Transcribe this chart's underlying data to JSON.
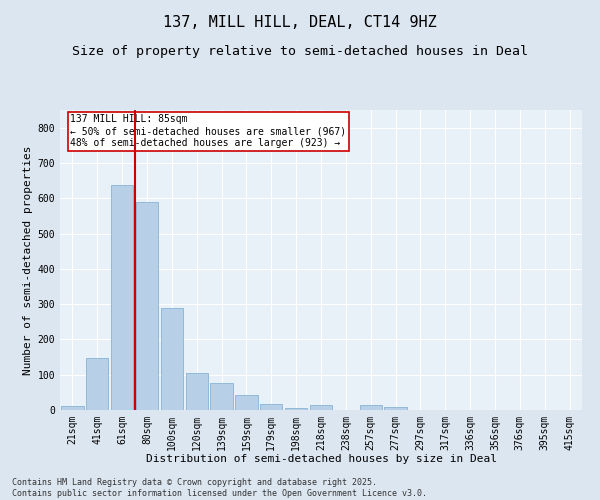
{
  "title": "137, MILL HILL, DEAL, CT14 9HZ",
  "subtitle": "Size of property relative to semi-detached houses in Deal",
  "xlabel": "Distribution of semi-detached houses by size in Deal",
  "ylabel": "Number of semi-detached properties",
  "footnote": "Contains HM Land Registry data © Crown copyright and database right 2025.\nContains public sector information licensed under the Open Government Licence v3.0.",
  "categories": [
    "21sqm",
    "41sqm",
    "61sqm",
    "80sqm",
    "100sqm",
    "120sqm",
    "139sqm",
    "159sqm",
    "179sqm",
    "198sqm",
    "218sqm",
    "238sqm",
    "257sqm",
    "277sqm",
    "297sqm",
    "317sqm",
    "336sqm",
    "356sqm",
    "376sqm",
    "395sqm",
    "415sqm"
  ],
  "values": [
    12,
    148,
    638,
    590,
    290,
    105,
    77,
    42,
    16,
    5,
    14,
    0,
    14,
    8,
    0,
    0,
    0,
    0,
    0,
    0,
    0
  ],
  "bar_color": "#b8cfe8",
  "bar_edge_color": "#7aaad0",
  "vline_color": "#cc0000",
  "vline_x_index": 3,
  "annotation_title": "137 MILL HILL: 85sqm",
  "annotation_line2": "← 50% of semi-detached houses are smaller (967)",
  "annotation_line3": "48% of semi-detached houses are larger (923) →",
  "annotation_box_color": "#ffffff",
  "annotation_box_edge": "#cc0000",
  "ylim": [
    0,
    850
  ],
  "yticks": [
    0,
    100,
    200,
    300,
    400,
    500,
    600,
    700,
    800
  ],
  "bg_color": "#dce6f0",
  "plot_bg_color": "#e8f0f8",
  "title_fontsize": 11,
  "subtitle_fontsize": 9.5,
  "label_fontsize": 8,
  "tick_fontsize": 7,
  "footnote_fontsize": 6,
  "annotation_fontsize": 7
}
